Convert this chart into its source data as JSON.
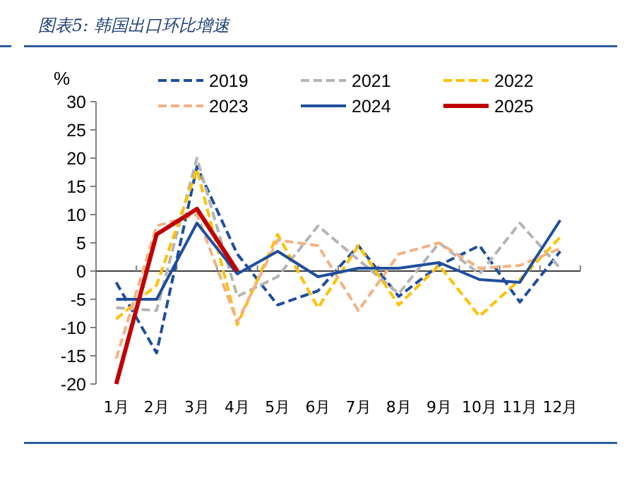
{
  "chart_data": {
    "type": "line",
    "title": "图表5:  韩国出口环比增速",
    "ylabel": "%",
    "categories": [
      "1月",
      "2月",
      "3月",
      "4月",
      "5月",
      "6月",
      "7月",
      "8月",
      "9月",
      "10月",
      "11月",
      "12月"
    ],
    "series": [
      {
        "name": "2019",
        "color": "#1f4e9c",
        "line_style": "dashed",
        "values": [
          -2,
          -14.5,
          18.5,
          3,
          -6,
          -3.5,
          4.5,
          -4.5,
          1,
          4.5,
          -5.5,
          3.5
        ]
      },
      {
        "name": "2021",
        "color": "#b4b4b4",
        "line_style": "dashed",
        "values": [
          -6.5,
          -7,
          20,
          -4.5,
          -1,
          8,
          2,
          -4,
          5,
          -0.5,
          8.5,
          0.5
        ]
      },
      {
        "name": "2022",
        "color": "#ffc000",
        "line_style": "dashed",
        "values": [
          -8.5,
          -2.5,
          18,
          -9.5,
          6.5,
          -6.5,
          4.5,
          -6,
          1,
          -8,
          -1.5,
          6
        ]
      },
      {
        "name": "2023",
        "color": "#f4b183",
        "line_style": "dashed",
        "values": [
          -15.5,
          8,
          10,
          -9,
          5.5,
          4.5,
          -7,
          3,
          5,
          0.5,
          1,
          4
        ]
      },
      {
        "name": "2024",
        "color": "#1f4e9c",
        "line_style": "solid",
        "values": [
          -5,
          -5,
          8.5,
          -0.5,
          3.5,
          -1,
          0.5,
          0.5,
          1.5,
          -1.5,
          -2,
          9
        ]
      },
      {
        "name": "2025",
        "color": "#c00000",
        "line_style": "solid",
        "values": [
          -20,
          6.5,
          11,
          0,
          null,
          null,
          null,
          null,
          null,
          null,
          null,
          null
        ]
      }
    ],
    "ylim": [
      -20,
      30
    ],
    "yticks": [
      -20,
      -15,
      -10,
      -5,
      0,
      5,
      10,
      15,
      20,
      25,
      30
    ],
    "legend": "top",
    "marker": "none"
  }
}
